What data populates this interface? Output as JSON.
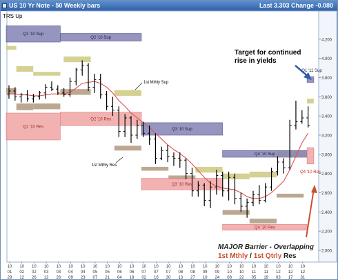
{
  "window": {
    "title": "US 10 Yr Note - 50 Weekly bars",
    "status": "Last 3.303 Change -0.080",
    "indicator": "TRS Up"
  },
  "chart_data": {
    "type": "ohlc",
    "ylim": [
      2.0,
      4.4
    ],
    "y_ticks": [
      "4.200",
      "4.000",
      "3.800",
      "3.600",
      "3.400",
      "3.200",
      "3.000",
      "2.800",
      "2.600",
      "2.400",
      "2.200",
      "2.000"
    ],
    "x_ticks": [
      [
        "10",
        "01",
        "29"
      ],
      [
        "10",
        "02",
        "12"
      ],
      [
        "10",
        "02",
        "26"
      ],
      [
        "10",
        "03",
        "12"
      ],
      [
        "10",
        "03",
        "26"
      ],
      [
        "10",
        "04",
        "09"
      ],
      [
        "10",
        "04",
        "23"
      ],
      [
        "10",
        "05",
        "07"
      ],
      [
        "10",
        "05",
        "21"
      ],
      [
        "10",
        "06",
        "04"
      ],
      [
        "10",
        "06",
        "18"
      ],
      [
        "10",
        "07",
        "02"
      ],
      [
        "10",
        "07",
        "16"
      ],
      [
        "10",
        "07",
        "30"
      ],
      [
        "10",
        "08",
        "13"
      ],
      [
        "10",
        "08",
        "27"
      ],
      [
        "10",
        "09",
        "10"
      ],
      [
        "10",
        "09",
        "24"
      ],
      [
        "10",
        "10",
        "08"
      ],
      [
        "10",
        "10",
        "22"
      ],
      [
        "10",
        "11",
        "05"
      ],
      [
        "10",
        "11",
        "19"
      ],
      [
        "10",
        "12",
        "03"
      ],
      [
        "10",
        "12",
        "17"
      ],
      [
        "10",
        "12",
        "31"
      ]
    ],
    "bars": [
      {
        "o": 3.62,
        "h": 3.72,
        "l": 3.58,
        "c": 3.66
      },
      {
        "o": 3.66,
        "h": 3.7,
        "l": 3.56,
        "c": 3.6
      },
      {
        "o": 3.6,
        "h": 3.64,
        "l": 3.54,
        "c": 3.62
      },
      {
        "o": 3.62,
        "h": 3.67,
        "l": 3.55,
        "c": 3.58
      },
      {
        "o": 3.58,
        "h": 3.63,
        "l": 3.54,
        "c": 3.6
      },
      {
        "o": 3.6,
        "h": 3.66,
        "l": 3.57,
        "c": 3.64
      },
      {
        "o": 3.64,
        "h": 3.73,
        "l": 3.58,
        "c": 3.7
      },
      {
        "o": 3.7,
        "h": 3.76,
        "l": 3.66,
        "c": 3.68
      },
      {
        "o": 3.68,
        "h": 3.72,
        "l": 3.62,
        "c": 3.64
      },
      {
        "o": 3.64,
        "h": 3.69,
        "l": 3.6,
        "c": 3.62
      },
      {
        "o": 3.62,
        "h": 3.8,
        "l": 3.6,
        "c": 3.76
      },
      {
        "o": 3.76,
        "h": 3.9,
        "l": 3.72,
        "c": 3.88
      },
      {
        "o": 3.88,
        "h": 3.98,
        "l": 3.82,
        "c": 3.93
      },
      {
        "o": 3.93,
        "h": 3.95,
        "l": 3.66,
        "c": 3.7
      },
      {
        "o": 3.7,
        "h": 3.84,
        "l": 3.64,
        "c": 3.78
      },
      {
        "o": 3.78,
        "h": 3.84,
        "l": 3.58,
        "c": 3.62
      },
      {
        "o": 3.62,
        "h": 3.66,
        "l": 3.46,
        "c": 3.5
      },
      {
        "o": 3.5,
        "h": 3.6,
        "l": 3.4,
        "c": 3.46
      },
      {
        "o": 3.46,
        "h": 3.5,
        "l": 3.18,
        "c": 3.24
      },
      {
        "o": 3.24,
        "h": 3.42,
        "l": 3.18,
        "c": 3.38
      },
      {
        "o": 3.38,
        "h": 3.4,
        "l": 3.12,
        "c": 3.2
      },
      {
        "o": 3.2,
        "h": 3.36,
        "l": 3.16,
        "c": 3.3
      },
      {
        "o": 3.3,
        "h": 3.34,
        "l": 3.18,
        "c": 3.22
      },
      {
        "o": 3.22,
        "h": 3.3,
        "l": 3.1,
        "c": 3.16
      },
      {
        "o": 3.16,
        "h": 3.22,
        "l": 2.9,
        "c": 2.96
      },
      {
        "o": 2.96,
        "h": 3.08,
        "l": 2.94,
        "c": 3.04
      },
      {
        "o": 3.04,
        "h": 3.1,
        "l": 2.92,
        "c": 2.98
      },
      {
        "o": 2.98,
        "h": 3.02,
        "l": 2.88,
        "c": 2.96
      },
      {
        "o": 2.96,
        "h": 3.02,
        "l": 2.86,
        "c": 2.94
      },
      {
        "o": 2.94,
        "h": 2.96,
        "l": 2.74,
        "c": 2.8
      },
      {
        "o": 2.8,
        "h": 2.86,
        "l": 2.56,
        "c": 2.62
      },
      {
        "o": 2.62,
        "h": 2.72,
        "l": 2.56,
        "c": 2.68
      },
      {
        "o": 2.68,
        "h": 2.7,
        "l": 2.46,
        "c": 2.52
      },
      {
        "o": 2.52,
        "h": 2.72,
        "l": 2.44,
        "c": 2.66
      },
      {
        "o": 2.66,
        "h": 2.84,
        "l": 2.58,
        "c": 2.78
      },
      {
        "o": 2.78,
        "h": 2.82,
        "l": 2.56,
        "c": 2.62
      },
      {
        "o": 2.62,
        "h": 2.82,
        "l": 2.52,
        "c": 2.76
      },
      {
        "o": 2.76,
        "h": 2.8,
        "l": 2.48,
        "c": 2.54
      },
      {
        "o": 2.54,
        "h": 2.6,
        "l": 2.4,
        "c": 2.46
      },
      {
        "o": 2.46,
        "h": 2.54,
        "l": 2.34,
        "c": 2.5
      },
      {
        "o": 2.5,
        "h": 2.62,
        "l": 2.46,
        "c": 2.58
      },
      {
        "o": 2.58,
        "h": 2.68,
        "l": 2.48,
        "c": 2.52
      },
      {
        "o": 2.52,
        "h": 2.7,
        "l": 2.5,
        "c": 2.66
      },
      {
        "o": 2.66,
        "h": 2.86,
        "l": 2.62,
        "c": 2.82
      },
      {
        "o": 2.82,
        "h": 2.98,
        "l": 2.78,
        "c": 2.92
      },
      {
        "o": 2.92,
        "h": 2.96,
        "l": 2.8,
        "c": 2.86
      },
      {
        "o": 2.86,
        "h": 3.36,
        "l": 2.84,
        "c": 3.3
      },
      {
        "o": 3.3,
        "h": 3.56,
        "l": 3.26,
        "c": 3.34
      },
      {
        "o": 3.34,
        "h": 3.46,
        "l": 3.32,
        "c": 3.38
      },
      {
        "o": 3.38,
        "h": 3.5,
        "l": 3.28,
        "c": 3.3
      }
    ],
    "moving_average": [
      3.63,
      3.63,
      3.62,
      3.62,
      3.61,
      3.61,
      3.62,
      3.63,
      3.63,
      3.63,
      3.65,
      3.69,
      3.74,
      3.75,
      3.76,
      3.74,
      3.7,
      3.64,
      3.56,
      3.5,
      3.43,
      3.38,
      3.33,
      3.28,
      3.22,
      3.16,
      3.1,
      3.05,
      3.01,
      2.96,
      2.9,
      2.83,
      2.76,
      2.7,
      2.67,
      2.65,
      2.64,
      2.63,
      2.6,
      2.56,
      2.54,
      2.54,
      2.56,
      2.6,
      2.66,
      2.72,
      2.84,
      2.98,
      3.12,
      3.22
    ],
    "zones": [
      {
        "label": "Q1 '10 Sup",
        "low": 4.17,
        "high": 4.34,
        "from": 0,
        "to": 16,
        "kind": "qtrly-sup"
      },
      {
        "label": "Q2 '10 Sup",
        "low": 4.18,
        "high": 4.26,
        "from": 16,
        "to": 40,
        "kind": "qtrly-sup"
      },
      {
        "label": "Q1 '10 Res",
        "low": 3.15,
        "high": 3.43,
        "from": 0,
        "to": 16,
        "kind": "qtrly-res"
      },
      {
        "label": "Q2 '10 Res",
        "low": 3.3,
        "high": 3.44,
        "from": 16,
        "to": 40,
        "kind": "qtrly-res"
      },
      {
        "label": "Q3 '10 Sup",
        "low": 3.2,
        "high": 3.33,
        "from": 40,
        "to": 64,
        "kind": "qtrly-sup"
      },
      {
        "label": "Q3 '10 Res",
        "low": 2.63,
        "high": 2.75,
        "from": 40,
        "to": 64,
        "kind": "qtrly-res"
      },
      {
        "label": "Q4 '10 Sup",
        "low": 2.97,
        "high": 3.04,
        "from": 64,
        "to": 89,
        "kind": "qtrly-sup"
      },
      {
        "label": "Q4 '10 Res",
        "low": 2.21,
        "high": 2.27,
        "from": 64,
        "to": 89,
        "kind": "qtrly-res"
      },
      {
        "label": "Q4 '10 Res",
        "low": 2.9,
        "high": 3.07,
        "from": 89,
        "to": 91,
        "kind": "qtrly-res"
      },
      {
        "label": "Q1 '11 Sup",
        "low": 3.75,
        "high": 3.81,
        "from": 89,
        "to": 91,
        "kind": "qtrly-sup"
      }
    ],
    "monthly_zones": [
      {
        "low": 4.09,
        "high": 4.13,
        "from": 0,
        "to": 3,
        "kind": "mthly-sup"
      },
      {
        "low": 3.86,
        "high": 3.92,
        "from": 3,
        "to": 8,
        "kind": "mthly-sup"
      },
      {
        "low": 3.82,
        "high": 3.86,
        "from": 8,
        "to": 16,
        "kind": "mthly-sup"
      },
      {
        "low": 3.96,
        "high": 4.02,
        "from": 17,
        "to": 25,
        "kind": "mthly-sup"
      },
      {
        "low": 3.46,
        "high": 3.53,
        "from": 3,
        "to": 8,
        "kind": "mthly-res"
      },
      {
        "low": 3.47,
        "high": 3.53,
        "from": 8,
        "to": 16,
        "kind": "mthly-res"
      },
      {
        "low": 3.62,
        "high": 3.68,
        "from": 16,
        "to": 25,
        "kind": "mthly-res"
      },
      {
        "low": 3.61,
        "high": 3.67,
        "from": 32,
        "to": 40,
        "kind": "mthly-sup"
      },
      {
        "low": 3.63,
        "high": 3.69,
        "from": 0,
        "to": 3,
        "kind": "mthly-res"
      },
      {
        "low": 3.04,
        "high": 3.09,
        "from": 32,
        "to": 40,
        "kind": "mthly-res"
      },
      {
        "low": 2.83,
        "high": 2.87,
        "from": 40,
        "to": 48,
        "kind": "mthly-res"
      },
      {
        "low": 2.74,
        "high": 2.78,
        "from": 48,
        "to": 56,
        "kind": "mthly-res"
      },
      {
        "low": 2.81,
        "high": 2.87,
        "from": 56,
        "to": 64,
        "kind": "mthly-sup"
      },
      {
        "low": 2.74,
        "high": 2.8,
        "from": 64,
        "to": 72,
        "kind": "mthly-sup"
      },
      {
        "low": 2.76,
        "high": 2.82,
        "from": 72,
        "to": 80,
        "kind": "mthly-sup"
      },
      {
        "low": 2.37,
        "high": 2.42,
        "from": 64,
        "to": 72,
        "kind": "mthly-res"
      },
      {
        "low": 2.28,
        "high": 2.33,
        "from": 72,
        "to": 80,
        "kind": "mthly-res"
      },
      {
        "low": 2.98,
        "high": 3.04,
        "from": 80,
        "to": 89,
        "kind": "mthly-sup"
      },
      {
        "low": 2.55,
        "high": 2.59,
        "from": 80,
        "to": 88,
        "kind": "mthly-res"
      },
      {
        "low": 3.53,
        "high": 3.58,
        "from": 89,
        "to": 91,
        "kind": "mthly-sup"
      }
    ],
    "annotations": [
      {
        "id": "mthly-sup",
        "text": "1st Mthly Sup"
      },
      {
        "id": "mthly-res",
        "text": "1st Mthly Res"
      },
      {
        "id": "target",
        "lines": [
          "Target for continued",
          "rise in yields"
        ]
      },
      {
        "id": "barrier-title",
        "text": "MAJOR Barrier - Overlapping"
      },
      {
        "id": "barrier-mthly",
        "text": "1st Mthly"
      },
      {
        "id": "barrier-sep",
        "text": " / "
      },
      {
        "id": "barrier-qtrly",
        "text": "1st Qtrly"
      },
      {
        "id": "barrier-res",
        "text": " Res"
      }
    ],
    "colors": {
      "qtrly_sup": "#8482b4",
      "qtrly_res": "#f0a4a4",
      "mthly_sup": "#cfcc86",
      "mthly_res": "#b59e86",
      "bars": "#000000",
      "moving_average": "#e05050",
      "arrow": "#2f5fa8",
      "barrier": "#c8502c",
      "target_text": "#000000"
    }
  }
}
